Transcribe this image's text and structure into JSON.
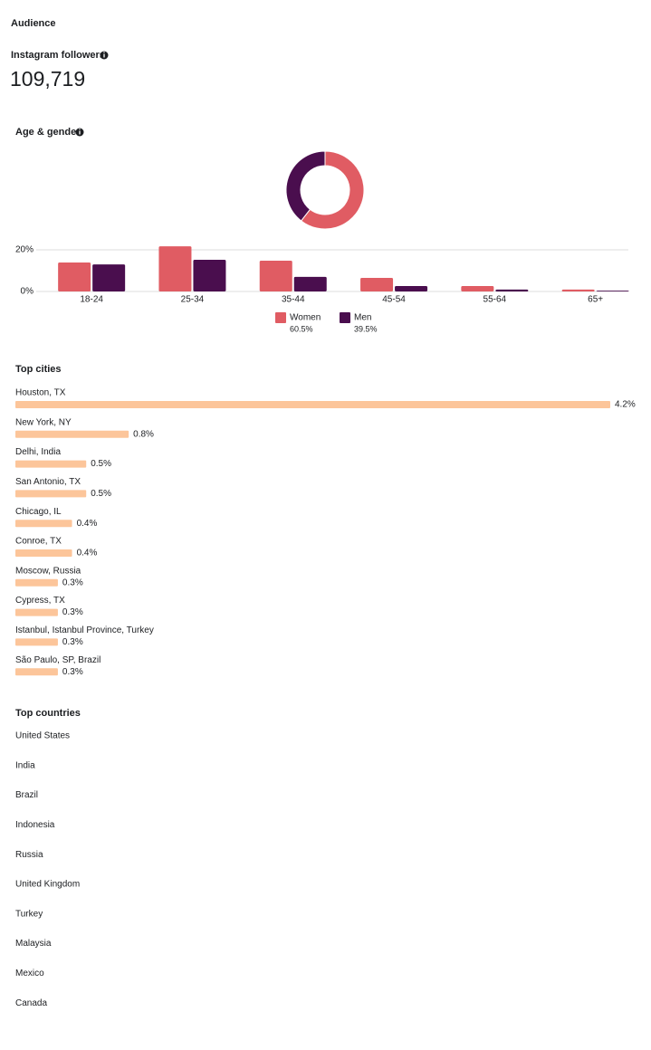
{
  "title": "Audience",
  "followers": {
    "label": "Instagram followers",
    "value": "109,719"
  },
  "age_gender_title": "Age & gender",
  "chart_data": [
    {
      "type": "pie",
      "donut": true,
      "categories": [
        "Women",
        "Men"
      ],
      "values": [
        60.5,
        39.5
      ],
      "value_labels": [
        "60.5%",
        "39.5%"
      ],
      "colors": [
        "#e05c63",
        "#4a0e4e"
      ]
    },
    {
      "type": "bar",
      "categories": [
        "18-24",
        "25-34",
        "35-44",
        "45-54",
        "55-64",
        "65+"
      ],
      "series": [
        {
          "name": "Women",
          "color": "#e05c63",
          "values": [
            13.9,
            21.7,
            14.8,
            6.5,
            2.6,
            0.9
          ]
        },
        {
          "name": "Men",
          "color": "#4a0e4e",
          "values": [
            13,
            15.2,
            7,
            2.6,
            0.9,
            0.4
          ]
        }
      ],
      "ylim": [
        0,
        22
      ],
      "yticks": [
        {
          "value": 0,
          "label": "0%"
        },
        {
          "value": 20,
          "label": "20%"
        }
      ],
      "grid": true
    },
    {
      "type": "hbar",
      "title": "Top cities",
      "categories": [
        "Houston, TX",
        "New York, NY",
        "Delhi, India",
        "San Antonio, TX",
        "Chicago, IL",
        "Conroe, TX",
        "Moscow, Russia",
        "Cypress, TX",
        "Istanbul, Istanbul Province, Turkey",
        "São Paulo, SP, Brazil"
      ],
      "values": [
        4.2,
        0.8,
        0.5,
        0.5,
        0.4,
        0.4,
        0.3,
        0.3,
        0.3,
        0.3
      ],
      "value_labels": [
        "4.2%",
        "0.8%",
        "0.5%",
        "0.5%",
        "0.4%",
        "0.4%",
        "0.3%",
        "0.3%",
        "0.3%",
        "0.3%"
      ],
      "color": "#fcc59a"
    }
  ],
  "top_countries": {
    "title": "Top countries",
    "items": [
      "United States",
      "India",
      "Brazil",
      "Indonesia",
      "Russia",
      "United Kingdom",
      "Turkey",
      "Malaysia",
      "Mexico",
      "Canada"
    ]
  }
}
